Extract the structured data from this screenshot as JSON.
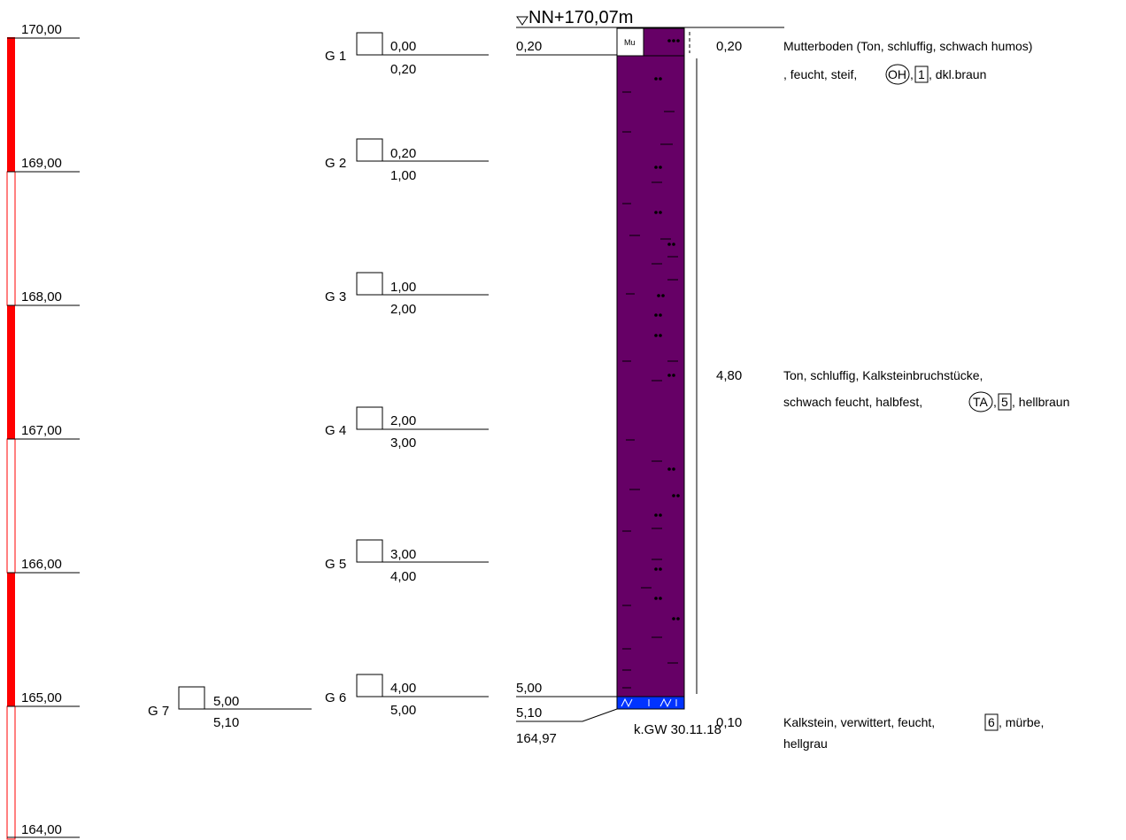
{
  "header": {
    "datum": "NN+170,07m"
  },
  "scale": {
    "ticks": [
      "170,00",
      "169,00",
      "168,00",
      "167,00",
      "166,00",
      "165,00",
      "164,00"
    ]
  },
  "samples": [
    {
      "id": "G 1",
      "top": "0,00",
      "bottom": "0,20"
    },
    {
      "id": "G 2",
      "top": "0,20",
      "bottom": "1,00"
    },
    {
      "id": "G 3",
      "top": "1,00",
      "bottom": "2,00"
    },
    {
      "id": "G 4",
      "top": "2,00",
      "bottom": "3,00"
    },
    {
      "id": "G 5",
      "top": "3,00",
      "bottom": "4,00"
    },
    {
      "id": "G 6",
      "top": "4,00",
      "bottom": "5,00"
    },
    {
      "id": "G 7",
      "top": "5,00",
      "bottom": "5,10"
    }
  ],
  "column": {
    "depth_labels": [
      "0,20",
      "5,00",
      "5,10"
    ],
    "final_elevation": "164,97",
    "topsoil_symbol": "Mu",
    "groundwater_note": "k.GW 30.11.18"
  },
  "layers": [
    {
      "thickness": "0,20",
      "line1": "Mutterboden (Ton, schluffig, schwach humos)",
      "line2_prefix": ", feucht, steif,",
      "soil_group": "OH",
      "class_no": "1",
      "line2_suffix": ", dkl.braun"
    },
    {
      "thickness": "4,80",
      "line1": "Ton, schluffig, Kalksteinbruchstücke,",
      "line2_prefix": "schwach feucht, halbfest,",
      "soil_group": "TA",
      "class_no": "5",
      "line2_suffix": ", hellbraun"
    },
    {
      "thickness": "0,10",
      "line1_prefix": "Kalkstein, verwittert, feucht,",
      "class_no": "6",
      "line1_suffix": ", mürbe,",
      "line2": "hellgrau"
    }
  ],
  "colors": {
    "scale_red": "#ff0000",
    "clay": "#660066",
    "limestone": "#0033ff",
    "ink": "#000000"
  }
}
